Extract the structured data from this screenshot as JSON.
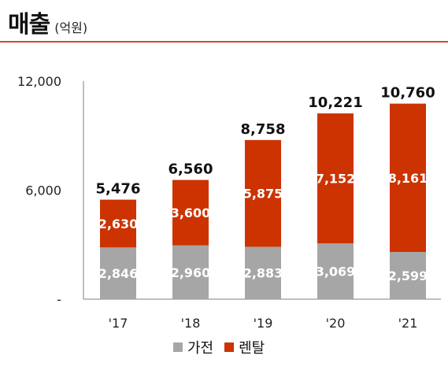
{
  "header": {
    "title": "매출",
    "unit": "(억원)"
  },
  "colors": {
    "appliance": "#a6a6a6",
    "rental": "#cc3300",
    "rule": "#c9502c"
  },
  "chart_data": {
    "type": "bar",
    "stacked": true,
    "categories": [
      "'17",
      "'18",
      "'19",
      "'20",
      "'21"
    ],
    "series": [
      {
        "name": "가전",
        "values": [
          2846,
          2960,
          2883,
          3069,
          2599
        ]
      },
      {
        "name": "렌탈",
        "values": [
          2630,
          3600,
          5875,
          7152,
          8161
        ]
      }
    ],
    "totals": [
      5476,
      6560,
      8758,
      10221,
      10760
    ],
    "y_ticks": [
      "12,000",
      "6,000",
      "-"
    ],
    "ylim": [
      0,
      12000
    ],
    "legend_position": "bottom"
  }
}
